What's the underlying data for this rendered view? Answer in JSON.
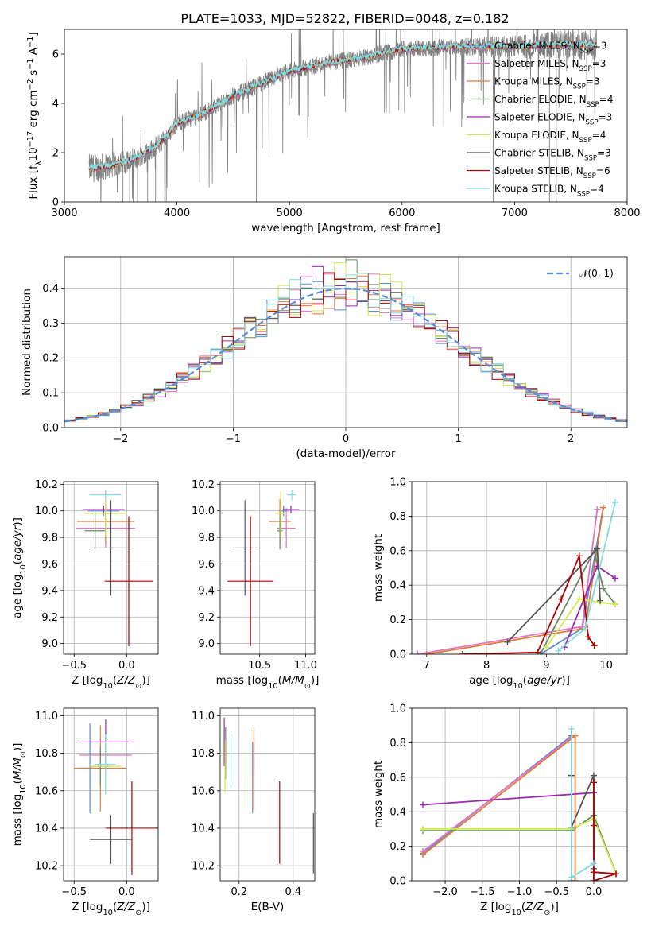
{
  "figure_title": "PLATE=1033, MJD=52822, FIBERID=0048, z=0.182",
  "models": [
    {
      "name": "Chabrier MILES",
      "nssp": "3",
      "color": "#5b8bd6"
    },
    {
      "name": "Salpeter MILES",
      "nssp": "3",
      "color": "#e377c2"
    },
    {
      "name": "Kroupa MILES",
      "nssp": "3",
      "color": "#e07b39"
    },
    {
      "name": "Chabrier ELODIE",
      "nssp": "4",
      "color": "#6a8a6a"
    },
    {
      "name": "Salpeter ELODIE",
      "nssp": "3",
      "color": "#9c27b0"
    },
    {
      "name": "Kroupa ELODIE",
      "nssp": "4",
      "color": "#d4ea4b"
    },
    {
      "name": "Chabrier STELIB",
      "nssp": "3",
      "color": "#555555"
    },
    {
      "name": "Salpeter STELIB",
      "nssp": "6",
      "color": "#b00000"
    },
    {
      "name": "Kroupa STELIB",
      "nssp": "4",
      "color": "#80dbe0"
    }
  ],
  "chart_data": [
    {
      "id": "spectrum",
      "type": "line",
      "xlabel": "wavelength [Angstrom, rest frame]",
      "ylabel": "Flux [f_λ 10^-17 erg cm^-2 s^-1 A^-1]",
      "xlim": [
        3000,
        8000
      ],
      "ylim": [
        0,
        7
      ],
      "xticks": [
        3000,
        4000,
        5000,
        6000,
        7000,
        8000
      ],
      "yticks": [
        0,
        2,
        4,
        6
      ],
      "grid": false,
      "legend": "top-right",
      "observed_color": "#808080",
      "continuum": {
        "x": [
          3220,
          3400,
          3600,
          3800,
          3900,
          4000,
          4200,
          4500,
          4800,
          5000,
          5300,
          5600,
          6000,
          6500,
          7000,
          7500,
          7730
        ],
        "y": [
          1.35,
          1.45,
          1.7,
          2.2,
          2.6,
          3.2,
          3.5,
          4.3,
          4.9,
          5.3,
          5.6,
          5.8,
          6.2,
          6.3,
          6.3,
          6.4,
          6.35
        ]
      }
    },
    {
      "id": "residuals",
      "type": "line",
      "xlabel": "(data-model)/error",
      "ylabel": "Normed distribution",
      "xlim": [
        -2.5,
        2.5
      ],
      "ylim": [
        0,
        0.49
      ],
      "xticks": [
        -2,
        -1,
        0,
        1,
        2
      ],
      "yticks": [
        0.0,
        0.1,
        0.2,
        0.3,
        0.4
      ],
      "grid": true,
      "legend": "top-right",
      "reference": {
        "name": "N(0,1)",
        "color": "#5b8bd6"
      },
      "bins": {
        "start": -2.5,
        "width": 0.1,
        "count": 50
      }
    },
    {
      "id": "age_vs_Z",
      "type": "scatter",
      "xlabel": "Z [log10(Z/Z_sun)]",
      "ylabel": "age [log10(age/yr)]",
      "xlim": [
        -0.6,
        0.3
      ],
      "ylim": [
        8.92,
        10.22
      ],
      "xticks": [
        -0.5,
        0.0
      ],
      "yticks": [
        9.0,
        9.2,
        9.4,
        9.6,
        9.8,
        10.0,
        10.2
      ],
      "grid": true,
      "points": [
        {
          "model": 0,
          "x": -0.22,
          "xerr": 0.15,
          "y": 10.0,
          "yerr": 0.04
        },
        {
          "model": 1,
          "x": -0.2,
          "xerr": 0.28,
          "y": 9.87,
          "yerr": 0.15
        },
        {
          "model": 2,
          "x": -0.2,
          "xerr": 0.27,
          "y": 9.92,
          "yerr": 0.17
        },
        {
          "model": 3,
          "x": -0.3,
          "xerr": 0.1,
          "y": 9.85,
          "yerr": 0.14
        },
        {
          "model": 4,
          "x": -0.22,
          "xerr": 0.2,
          "y": 10.01,
          "yerr": 0.03
        },
        {
          "model": 5,
          "x": -0.2,
          "xerr": 0.2,
          "y": 9.98,
          "yerr": 0.17
        },
        {
          "model": 6,
          "x": -0.15,
          "xerr": 0.18,
          "y": 9.72,
          "yerr": 0.36
        },
        {
          "model": 7,
          "x": 0.02,
          "xerr": 0.23,
          "y": 9.47,
          "yerr": 0.49
        },
        {
          "model": 8,
          "x": -0.2,
          "xerr": 0.15,
          "y": 10.12,
          "yerr": 0.04
        }
      ]
    },
    {
      "id": "age_vs_mass",
      "type": "scatter",
      "xlabel": "mass [log10(M/M_sun)]",
      "ylabel": "",
      "xlim": [
        10.07,
        11.1
      ],
      "ylim": [
        8.92,
        10.22
      ],
      "xticks": [
        10.5,
        11.0
      ],
      "yticks": [
        9.0,
        9.2,
        9.4,
        9.6,
        9.8,
        10.0,
        10.2
      ],
      "grid": true,
      "points": [
        {
          "model": 0,
          "x": 10.76,
          "xerr": 0.05,
          "y": 10.0,
          "yerr": 0.04
        },
        {
          "model": 1,
          "x": 10.79,
          "xerr": 0.1,
          "y": 9.87,
          "yerr": 0.15
        },
        {
          "model": 2,
          "x": 10.72,
          "xerr": 0.12,
          "y": 9.92,
          "yerr": 0.17
        },
        {
          "model": 3,
          "x": 10.72,
          "xerr": 0.03,
          "y": 9.85,
          "yerr": 0.14
        },
        {
          "model": 4,
          "x": 10.84,
          "xerr": 0.09,
          "y": 10.01,
          "yerr": 0.03
        },
        {
          "model": 5,
          "x": 10.73,
          "xerr": 0.06,
          "y": 9.98,
          "yerr": 0.17
        },
        {
          "model": 6,
          "x": 10.34,
          "xerr": 0.13,
          "y": 9.72,
          "yerr": 0.36
        },
        {
          "model": 7,
          "x": 10.4,
          "xerr": 0.25,
          "y": 9.47,
          "yerr": 0.49
        },
        {
          "model": 8,
          "x": 10.85,
          "xerr": 0.05,
          "y": 10.12,
          "yerr": 0.04
        }
      ]
    },
    {
      "id": "weight_vs_age",
      "type": "line",
      "xlabel": "age [log10(age/yr)]",
      "ylabel": "mass weight",
      "xlim": [
        6.75,
        10.35
      ],
      "ylim": [
        0,
        1
      ],
      "xticks": [
        7,
        8,
        9,
        10
      ],
      "yticks": [
        0.0,
        0.2,
        0.4,
        0.6,
        0.8,
        1.0
      ],
      "grid": true,
      "series": [
        {
          "model": 0,
          "x": [
            8.9,
            9.6,
            9.95
          ],
          "y": [
            0.0,
            0.15,
            0.85
          ]
        },
        {
          "model": 1,
          "x": [
            6.85,
            9.6,
            9.85
          ],
          "y": [
            0.0,
            0.16,
            0.84
          ]
        },
        {
          "model": 2,
          "x": [
            7.0,
            9.65,
            9.95
          ],
          "y": [
            0.0,
            0.15,
            0.85
          ]
        },
        {
          "model": 3,
          "x": [
            8.9,
            9.8,
            9.95,
            10.15
          ],
          "y": [
            0.0,
            0.6,
            0.38,
            0.29
          ]
        },
        {
          "model": 4,
          "x": [
            9.3,
            9.85,
            10.15
          ],
          "y": [
            0.04,
            0.51,
            0.44
          ]
        },
        {
          "model": 5,
          "x": [
            9.0,
            9.55,
            9.9,
            10.15
          ],
          "y": [
            0.04,
            0.32,
            0.3,
            0.29
          ]
        },
        {
          "model": 6,
          "x": [
            8.35,
            9.85,
            9.9
          ],
          "y": [
            0.07,
            0.61,
            0.31
          ]
        },
        {
          "model": 7,
          "x": [
            7.6,
            8.85,
            9.25,
            9.55,
            9.7,
            9.8
          ],
          "y": [
            0.0,
            0.01,
            0.32,
            0.57,
            0.1,
            0.05
          ]
        },
        {
          "model": 8,
          "x": [
            9.2,
            9.65,
            10.15
          ],
          "y": [
            0.02,
            0.15,
            0.88
          ]
        }
      ]
    },
    {
      "id": "mass_vs_Z",
      "type": "scatter",
      "xlabel": "Z [log10(Z/Z_sun)]",
      "ylabel": "mass [log10(M/M_sun)]",
      "xlim": [
        -0.6,
        0.3
      ],
      "ylim": [
        10.12,
        11.04
      ],
      "xticks": [
        -0.5,
        0.0
      ],
      "yticks": [
        10.2,
        10.4,
        10.6,
        10.8,
        11.0
      ],
      "grid": true,
      "points": [
        {
          "model": 0,
          "x": -0.35,
          "xerr": 0.1,
          "y": 10.72,
          "yerr": 0.24
        },
        {
          "model": 1,
          "x": -0.2,
          "xerr": 0.25,
          "y": 10.79,
          "yerr": 0.1
        },
        {
          "model": 2,
          "x": -0.25,
          "xerr": 0.25,
          "y": 10.72,
          "yerr": 0.23
        },
        {
          "model": 3,
          "x": -0.25,
          "xerr": 0.1,
          "y": 10.73,
          "yerr": 0.1
        },
        {
          "model": 4,
          "x": -0.2,
          "xerr": 0.25,
          "y": 10.86,
          "yerr": 0.12
        },
        {
          "model": 5,
          "x": -0.2,
          "xerr": 0.15,
          "y": 10.73,
          "yerr": 0.14
        },
        {
          "model": 6,
          "x": -0.15,
          "xerr": 0.2,
          "y": 10.34,
          "yerr": 0.13
        },
        {
          "model": 7,
          "x": 0.05,
          "xerr": 0.25,
          "y": 10.4,
          "yerr": 0.25
        },
        {
          "model": 8,
          "x": -0.2,
          "xerr": 0.1,
          "y": 10.74,
          "yerr": 0.16
        }
      ]
    },
    {
      "id": "mass_vs_ebv",
      "type": "scatter",
      "xlabel": "E(B-V)",
      "ylabel": "",
      "xlim": [
        0.13,
        0.48
      ],
      "ylim": [
        10.12,
        11.04
      ],
      "xticks": [
        0.2,
        0.4
      ],
      "yticks": [
        10.2,
        10.4,
        10.6,
        10.8,
        11.0
      ],
      "grid": true,
      "points": [
        {
          "model": 0,
          "x": 0.25,
          "xerr": 0.0,
          "y": 10.67,
          "yerr": 0.19
        },
        {
          "model": 1,
          "x": 0.255,
          "xerr": 0.0,
          "y": 10.79,
          "yerr": 0.09
        },
        {
          "model": 2,
          "x": 0.255,
          "xerr": 0.0,
          "y": 10.72,
          "yerr": 0.22
        },
        {
          "model": 3,
          "x": 0.15,
          "xerr": 0.0,
          "y": 10.8,
          "yerr": 0.14
        },
        {
          "model": 4,
          "x": 0.145,
          "xerr": 0.0,
          "y": 10.86,
          "yerr": 0.13
        },
        {
          "model": 5,
          "x": 0.148,
          "xerr": 0.0,
          "y": 10.73,
          "yerr": 0.14
        },
        {
          "model": 6,
          "x": 0.475,
          "xerr": 0.0,
          "y": 10.32,
          "yerr": 0.16
        },
        {
          "model": 7,
          "x": 0.35,
          "xerr": 0.0,
          "y": 10.43,
          "yerr": 0.22
        },
        {
          "model": 8,
          "x": 0.17,
          "xerr": 0.0,
          "y": 10.76,
          "yerr": 0.14
        }
      ]
    },
    {
      "id": "weight_vs_Z",
      "type": "line",
      "xlabel": "Z [log10(Z/Z_sun)]",
      "ylabel": "mass weight",
      "xlim": [
        -2.45,
        0.45
      ],
      "ylim": [
        0,
        1
      ],
      "xticks": [
        -2.0,
        -1.5,
        -1.0,
        -0.5,
        0.0
      ],
      "yticks": [
        0.0,
        0.2,
        0.4,
        0.6,
        0.8,
        1.0
      ],
      "grid": true,
      "series": [
        {
          "model": 0,
          "x": [
            -2.3,
            -0.3,
            -0.3
          ],
          "y": [
            0.16,
            0.84,
            0.0
          ]
        },
        {
          "model": 1,
          "x": [
            -2.3,
            -0.3
          ],
          "y": [
            0.17,
            0.83
          ]
        },
        {
          "model": 2,
          "x": [
            -2.3,
            -0.25,
            -0.25
          ],
          "y": [
            0.15,
            0.84,
            0.0
          ]
        },
        {
          "model": 3,
          "x": [
            -2.3,
            -0.3,
            0.0,
            0.3
          ],
          "y": [
            0.29,
            0.29,
            0.38,
            0.04
          ]
        },
        {
          "model": 4,
          "x": [
            -2.3,
            0.0,
            0.0,
            0.3
          ],
          "y": [
            0.44,
            0.51,
            0.05,
            0.04
          ]
        },
        {
          "model": 5,
          "x": [
            -2.3,
            -0.3,
            0.0,
            0.3
          ],
          "y": [
            0.3,
            0.3,
            0.36,
            0.04
          ]
        },
        {
          "model": 6,
          "x": [
            -0.3,
            -0.3,
            0.0,
            0.0
          ],
          "y": [
            0.61,
            0.31,
            0.61,
            0.07
          ]
        },
        {
          "model": 7,
          "x": [
            0.0,
            0.0,
            0.0,
            0.3,
            0.0
          ],
          "y": [
            0.57,
            0.32,
            0.0,
            0.04,
            0.05
          ]
        },
        {
          "model": 8,
          "x": [
            -0.3,
            -0.3,
            0.0
          ],
          "y": [
            0.88,
            0.02,
            0.1
          ]
        }
      ]
    }
  ]
}
